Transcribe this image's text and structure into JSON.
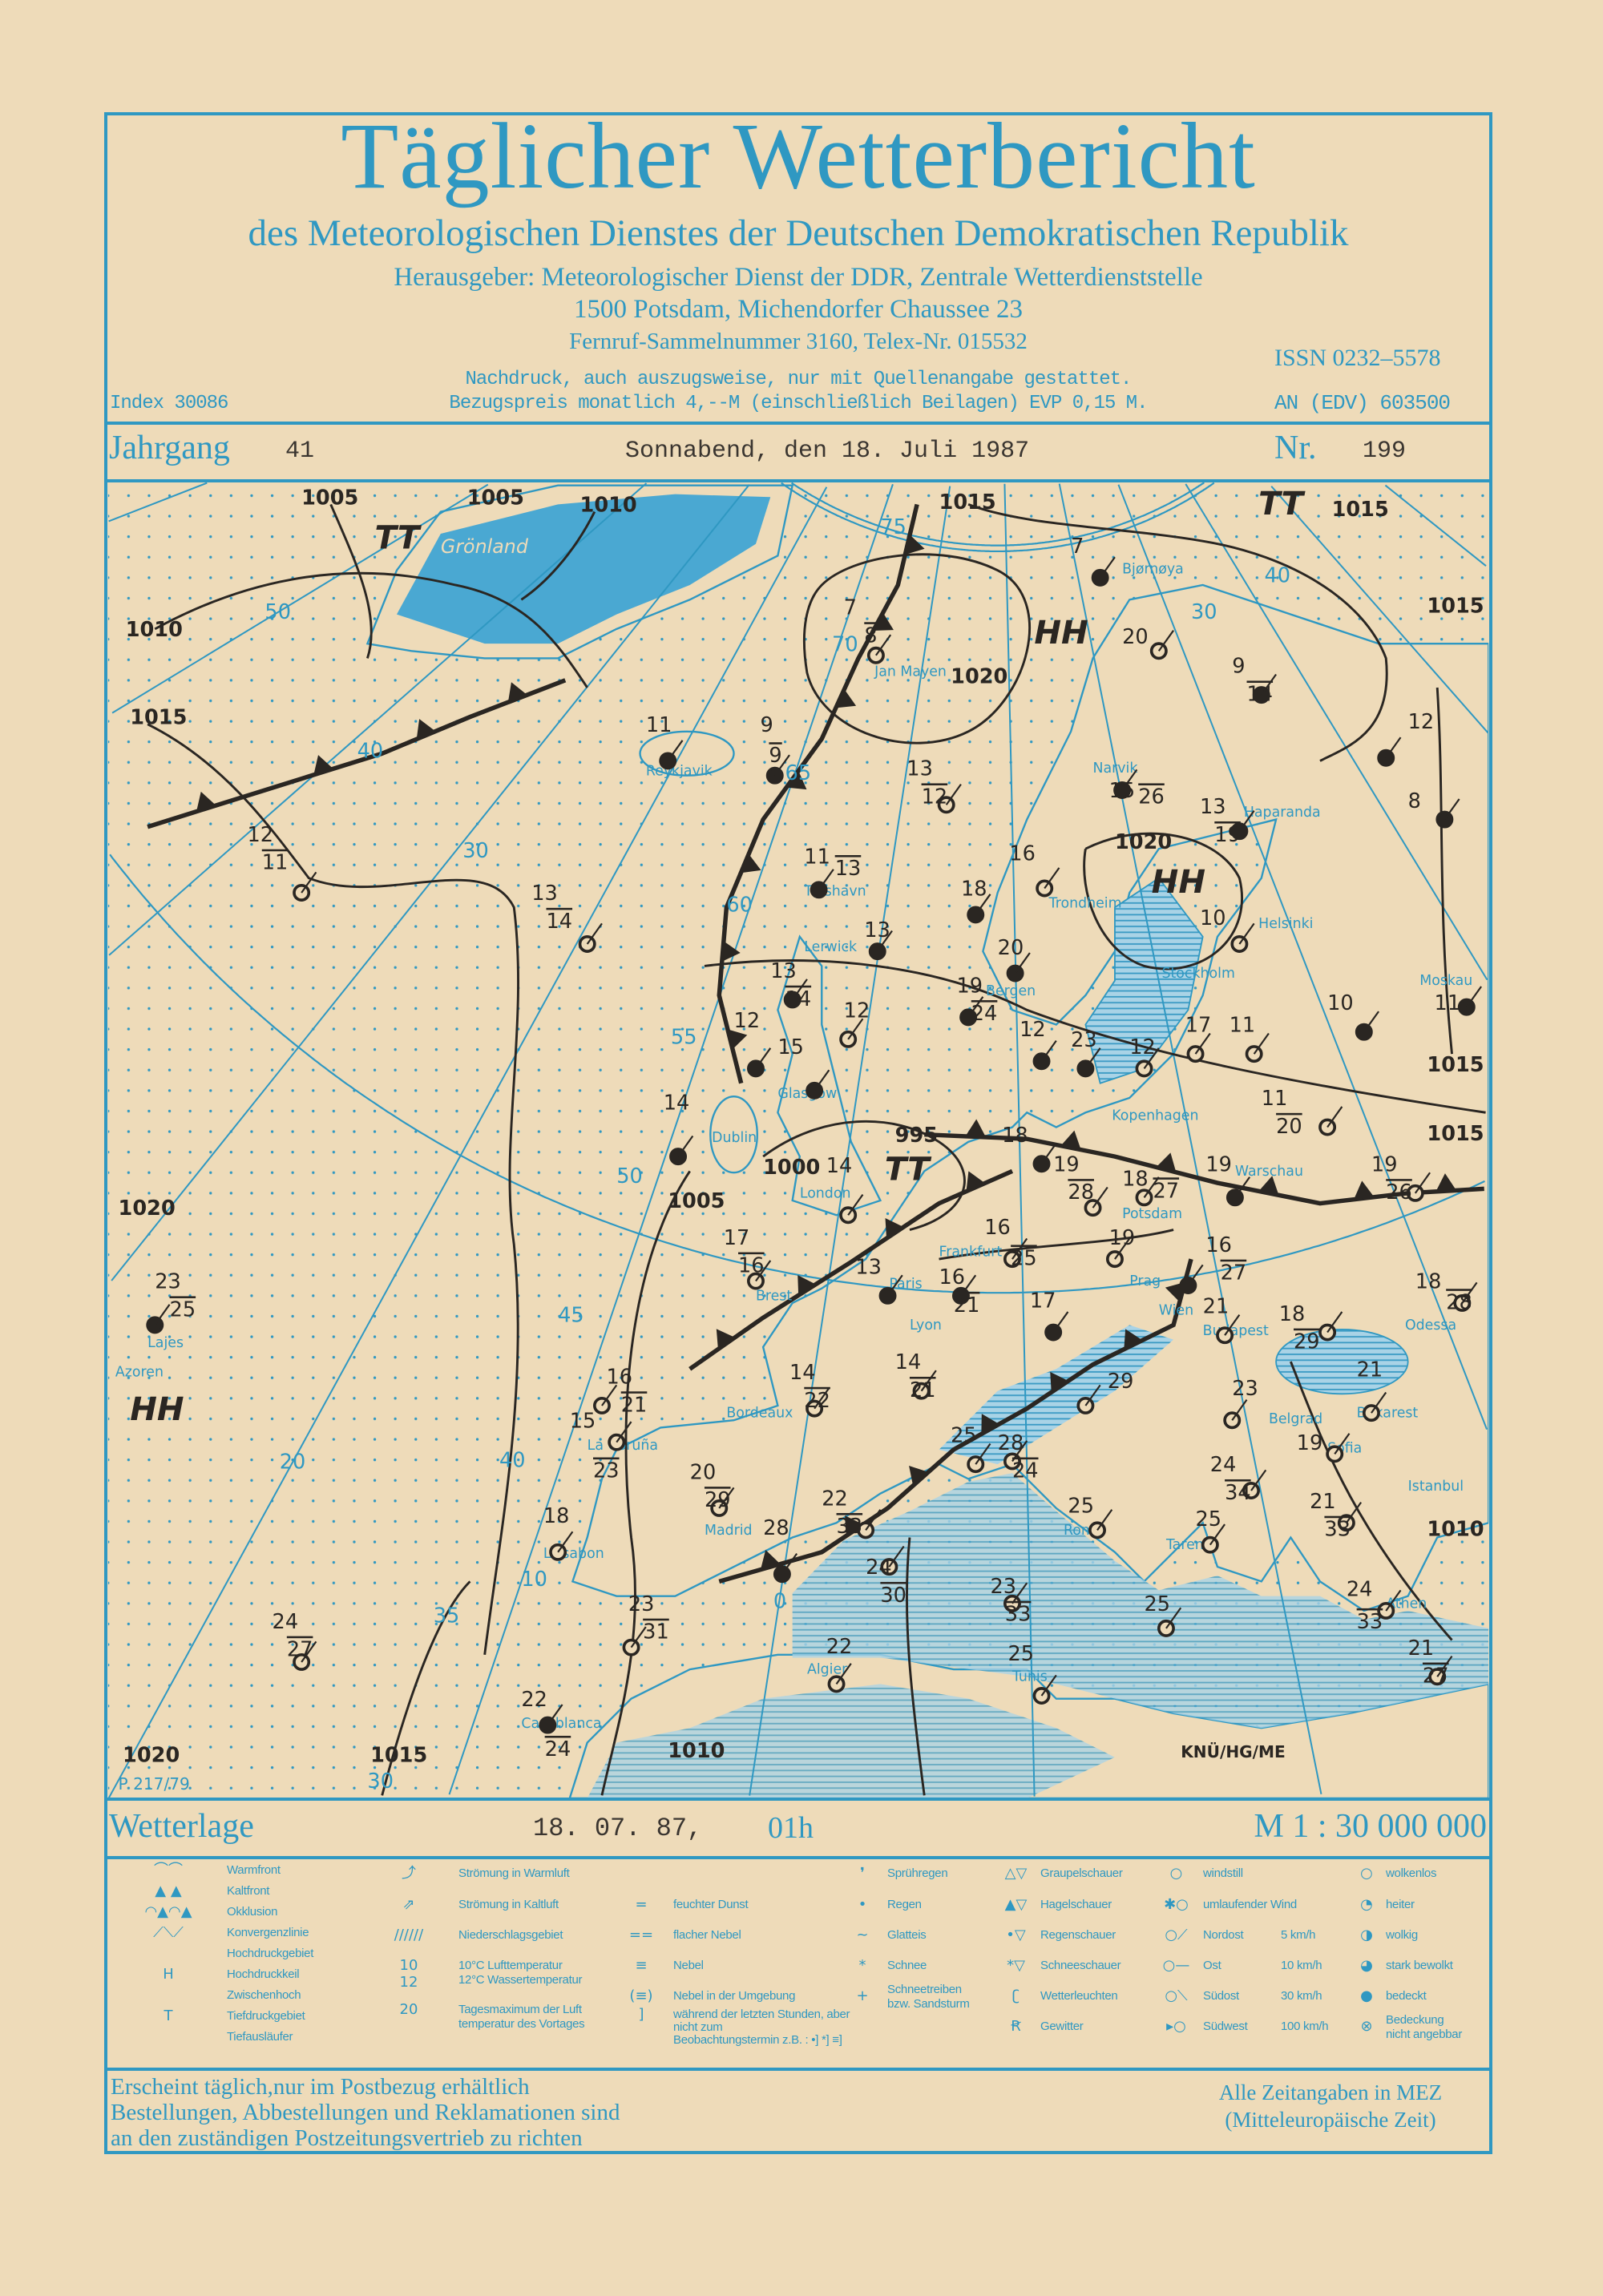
{
  "header": {
    "title": "Täglicher Wetterbericht",
    "subtitle": "des Meteorologischen Dienstes der Deutschen Demokratischen Republik",
    "publisher": "Herausgeber: Meteorologischer Dienst der DDR, Zentrale Wetterdienststelle",
    "address": "1500 Potsdam, Michendorfer Chaussee 23",
    "phone": "Fernruf-Sammelnummer 3160,  Telex-Nr. 015532",
    "issn": "ISSN 0232–5578",
    "reprint_note": "Nachdruck, auch auszugsweise, nur mit Quellenangabe gestattet.",
    "price": "Bezugspreis monatlich 4,--M (einschließlich Beilagen) EVP 0,15 M.",
    "index": "Index 30086",
    "an": "AN (EDV) 603500"
  },
  "issue": {
    "jahrgang_label": "Jahrgang",
    "jahrgang": "41",
    "date": "Sonnabend, den 18. Juli 1987",
    "nr_label": "Nr.",
    "nr": "199"
  },
  "map": {
    "pressure_labels": [
      "1005",
      "1005",
      "1010",
      "1015",
      "1015",
      "1010",
      "1015",
      "1020",
      "1020",
      "1015",
      "1015",
      "1015",
      "995",
      "1000",
      "1005",
      "1020",
      "1010",
      "1020",
      "1015",
      "1010"
    ],
    "region_label": "Grönland",
    "lat_labels": [
      "75",
      "70",
      "65",
      "60",
      "55",
      "50",
      "45",
      "40",
      "35",
      "30"
    ],
    "lon_labels": [
      "50",
      "40",
      "30",
      "20",
      "10",
      "0",
      "30",
      "40"
    ],
    "cities": [
      "Reykjavik",
      "Jan Mayen",
      "Bjørnøya",
      "Narvik",
      "Haparanda",
      "Tórshavn",
      "Lerwick",
      "Bergen",
      "Trondheim",
      "Helsinki",
      "Stockholm",
      "Moskau",
      "Glasgow",
      "Dublin",
      "London",
      "Kopenhagen",
      "Warschau",
      "Potsdam",
      "Paris",
      "Frankfurt",
      "Brest",
      "Prag",
      "Wien",
      "Budapest",
      "Odessa",
      "Bordeaux",
      "Lyon",
      "Bukarest",
      "Belgrad",
      "Sofia",
      "Istanbul",
      "La Coruña",
      "Lissabon",
      "Madrid",
      "Rom",
      "Tarent",
      "Athen",
      "Algier",
      "Tunis",
      "Casablanca",
      "Azoren",
      "Lajes"
    ],
    "pressure_systems": [
      "T",
      "T",
      "H",
      "H",
      "H",
      "T"
    ],
    "stations": [
      {
        "t": "7",
        "t2": "8",
        "cover": "open"
      },
      {
        "t": "7",
        "cover": "filled"
      },
      {
        "t": "20",
        "cover": "open"
      },
      {
        "t": "9",
        "t2": "14",
        "cover": "filled"
      },
      {
        "t": "11",
        "cover": "filled"
      },
      {
        "t": "9",
        "t2": "9",
        "cover": "filled"
      },
      {
        "t": "13",
        "t2": "12",
        "cover": "open"
      },
      {
        "t": "12",
        "t2": "11",
        "cover": "open"
      },
      {
        "t": "13",
        "t2": "14",
        "cover": "open"
      },
      {
        "t": "11",
        "t2": "13",
        "cover": "filled"
      },
      {
        "t": "16",
        "cover": "open"
      },
      {
        "t": "18",
        "cover": "filled"
      },
      {
        "t": "20",
        "cover": "filled"
      },
      {
        "t": "15",
        "t2": "26",
        "cover": "filled"
      },
      {
        "t": "13",
        "t2": "19",
        "cover": "filled"
      },
      {
        "t": "10",
        "cover": "open"
      },
      {
        "t": "12",
        "cover": "filled"
      },
      {
        "t": "8",
        "cover": "filled"
      },
      {
        "t": "13",
        "cover": "filled"
      },
      {
        "t": "13",
        "t2": "14",
        "cover": "filled"
      },
      {
        "t": "12",
        "cover": "filled"
      },
      {
        "t": "15",
        "cover": "filled"
      },
      {
        "t": "12",
        "cover": "open"
      },
      {
        "t": "19",
        "t2": "24",
        "cover": "filled"
      },
      {
        "t": "12",
        "cover": "filled"
      },
      {
        "t": "23",
        "cover": "filled"
      },
      {
        "t": "12",
        "cover": "open"
      },
      {
        "t": "17",
        "cover": "open"
      },
      {
        "t": "11",
        "cover": "open"
      },
      {
        "t": "10",
        "cover": "filled"
      },
      {
        "t": "11",
        "cover": "filled"
      },
      {
        "t": "11",
        "t2": "20",
        "cover": "open"
      },
      {
        "t": "14",
        "cover": "filled"
      },
      {
        "t": "14",
        "cover": "open"
      },
      {
        "t": "18",
        "cover": "filled"
      },
      {
        "t": "19",
        "t2": "28",
        "cover": "open"
      },
      {
        "t": "18",
        "t2": "27",
        "cover": "open"
      },
      {
        "t": "19",
        "cover": "filled"
      },
      {
        "t": "19",
        "t2": "26",
        "cover": "open"
      },
      {
        "t": "16",
        "t2": "25",
        "cover": "open"
      },
      {
        "t": "19",
        "cover": "open"
      },
      {
        "t": "16",
        "t2": "27",
        "cover": "filled"
      },
      {
        "t": "17",
        "t2": "16",
        "cover": "open"
      },
      {
        "t": "13",
        "cover": "filled"
      },
      {
        "t": "16",
        "t2": "21",
        "cover": "filled"
      },
      {
        "t": "17",
        "cover": "filled"
      },
      {
        "t": "21",
        "cover": "open"
      },
      {
        "t": "18",
        "t2": "29",
        "cover": "open"
      },
      {
        "t": "18",
        "t2": "28",
        "cover": "open"
      },
      {
        "t": "23",
        "t2": "25",
        "cover": "filled"
      },
      {
        "t": "21",
        "cover": "open"
      },
      {
        "t": "16",
        "t2": "21",
        "cover": "open"
      },
      {
        "t": "15",
        "t2": "23",
        "cover": "open"
      },
      {
        "t": "14",
        "t2": "22",
        "cover": "open"
      },
      {
        "t": "14",
        "t2": "21",
        "cover": "open"
      },
      {
        "t": "25",
        "cover": "open"
      },
      {
        "t": "28",
        "t2": "24",
        "cover": "open"
      },
      {
        "t": "29",
        "cover": "open"
      },
      {
        "t": "23",
        "cover": "open"
      },
      {
        "t": "24",
        "t2": "34",
        "cover": "open"
      },
      {
        "t": "19",
        "cover": "open"
      },
      {
        "t": "21",
        "t2": "33",
        "cover": "open"
      },
      {
        "t": "20",
        "t2": "29",
        "cover": "open"
      },
      {
        "t": "28",
        "cover": "filled"
      },
      {
        "t": "22",
        "t2": "33",
        "cover": "open"
      },
      {
        "t": "24",
        "t2": "30",
        "cover": "open"
      },
      {
        "t": "18",
        "cover": "open"
      },
      {
        "t": "25",
        "cover": "open"
      },
      {
        "t": "25",
        "cover": "open"
      },
      {
        "t": "23",
        "t2": "33",
        "cover": "open"
      },
      {
        "t": "25",
        "cover": "open"
      },
      {
        "t": "23",
        "t2": "31",
        "cover": "open"
      },
      {
        "t": "24",
        "t2": "33",
        "cover": "open"
      },
      {
        "t": "21",
        "t2": "27",
        "cover": "open"
      },
      {
        "t": "24",
        "t2": "27",
        "cover": "open"
      },
      {
        "t": "22",
        "cover": "open"
      },
      {
        "t": "25",
        "cover": "open"
      },
      {
        "t": "22",
        "t2": "24",
        "cover": "filled"
      }
    ],
    "plate_id": "P 217/79",
    "author": "KNÜ/HG/ME"
  },
  "wetterlage": {
    "label": "Wetterlage",
    "date": "18. 07. 87,",
    "time": "01h",
    "scale": "M 1 : 30 000 000"
  },
  "legend": {
    "col1": [
      {
        "sym": "⌒⌒",
        "label": "Warmfront"
      },
      {
        "sym": "▲ ▲",
        "label": "Kaltfront"
      },
      {
        "sym": "◠▲◠▲",
        "label": "Okklusion"
      },
      {
        "sym": "⟋⟍⟋",
        "label": "Konvergenzlinie"
      },
      {
        "sym": "",
        "label": "Hochdruckgebiet"
      },
      {
        "sym": "H",
        "label": "Hochdruckkeil"
      },
      {
        "sym": "",
        "label": "Zwischenhoch"
      },
      {
        "sym": "T",
        "label": "Tiefdruckgebiet"
      },
      {
        "sym": "",
        "label": "Tiefausläufer"
      }
    ],
    "col2": [
      {
        "sym": "⤴",
        "label": "Strömung in Warmluft"
      },
      {
        "sym": "⇗",
        "label": "Strömung in Kaltluft"
      },
      {
        "sym": "//////",
        "label": "Niederschlagsgebiet"
      },
      {
        "sym": "10",
        "sym2": "12",
        "label": "10°C Lufttemperatur",
        "label2": "12°C Wassertemperatur"
      },
      {
        "sym": "20",
        "label": "Tagesmaximum der Luft",
        "label2": "temperatur des Vortages"
      }
    ],
    "col3": [
      {
        "sym": "=",
        "label": "feuchter Dunst"
      },
      {
        "sym": "==",
        "label": "flacher Nebel"
      },
      {
        "sym": "≡",
        "label": "Nebel"
      },
      {
        "sym": "(≡)",
        "label": "Nebel in der Umgebung"
      },
      {
        "sym": "]",
        "label": "während der letzten Stunden, aber nicht zum",
        "label2": "Beobachtungstermin z.B. : •]  *]  ≡]"
      }
    ],
    "col4": [
      {
        "sym": "❜",
        "label": "Sprühregen"
      },
      {
        "sym": "•",
        "label": "Regen"
      },
      {
        "sym": "~",
        "label": "Glatteis"
      },
      {
        "sym": "*",
        "label": "Schnee"
      },
      {
        "sym": "+",
        "label": "Schneetreiben",
        "label2": "bzw. Sandsturm"
      }
    ],
    "col5": [
      {
        "sym": "△▽",
        "label": "Graupelschauer"
      },
      {
        "sym": "▲▽",
        "label": "Hagelschauer"
      },
      {
        "sym": "•▽",
        "label": "Regenschauer"
      },
      {
        "sym": "*▽",
        "label": "Schneeschauer"
      },
      {
        "sym": "ʗ",
        "label": "Wetterleuchten"
      },
      {
        "sym": "Ꞧ",
        "label": "Gewitter"
      }
    ],
    "col6": [
      {
        "sym": "○",
        "label": "windstill",
        "speed": ""
      },
      {
        "sym": "✱○",
        "label": "umlaufender Wind",
        "speed": ""
      },
      {
        "sym": "○⟋",
        "label": "Nordost",
        "speed": "5 km/h"
      },
      {
        "sym": "○—",
        "label": "Ost",
        "speed": "10 km/h"
      },
      {
        "sym": "○⟍",
        "label": "Südost",
        "speed": "30 km/h"
      },
      {
        "sym": "▸○",
        "label": "Südwest",
        "speed": "100 km/h"
      }
    ],
    "col7": [
      {
        "sym": "○",
        "label": "wolkenlos"
      },
      {
        "sym": "◔",
        "label": "heiter"
      },
      {
        "sym": "◑",
        "label": "wolkig"
      },
      {
        "sym": "◕",
        "label": "stark bewolkt"
      },
      {
        "sym": "●",
        "label": "bedeckt"
      },
      {
        "sym": "⊗",
        "label": "Bedeckung",
        "label2": "nicht angebbar"
      }
    ]
  },
  "footer": {
    "line1": "Erscheint täglich,nur im Postbezug erhältlich",
    "line2": "Bestellungen, Abbestellungen und Reklamationen sind",
    "line3": "an den zuständigen Postzeitungsvertrieb zu richten",
    "tz1": "Alle Zeitangaben in MEZ",
    "tz2": "(Mitteleuropäische Zeit)"
  },
  "colors": {
    "paper": "#eedbb9",
    "ink_blue": "#2f98c2",
    "water": "#5cb3d8",
    "plot_ink": "#2a2622"
  }
}
